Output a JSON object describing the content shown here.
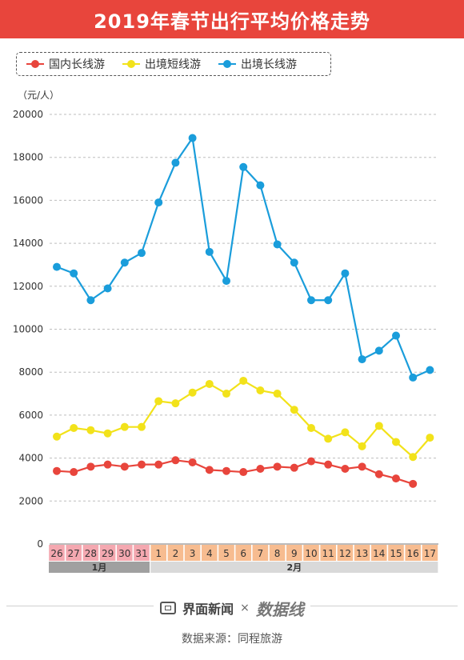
{
  "title": "2019年春节出行平均价格走势",
  "unit": "（元/人）",
  "footer": {
    "brand": "界面新闻",
    "times": "×",
    "logo": "数据线",
    "source": "数据来源：同程旅游"
  },
  "colors": {
    "title_bg": "#e8453c",
    "domestic": "#e8453c",
    "short": "#f2e21a",
    "long": "#1a9ddb"
  },
  "chart_data": {
    "type": "line",
    "title": "2019年春节出行平均价格走势",
    "ylabel": "（元/人）",
    "ylim": [
      0,
      20000
    ],
    "yticks": [
      0,
      2000,
      4000,
      6000,
      8000,
      10000,
      12000,
      14000,
      16000,
      18000,
      20000
    ],
    "grid": true,
    "legend_position": "top-left",
    "x": [
      "26",
      "27",
      "28",
      "29",
      "30",
      "31",
      "1",
      "2",
      "3",
      "4",
      "5",
      "6",
      "7",
      "8",
      "9",
      "10",
      "11",
      "12",
      "13",
      "14",
      "15",
      "16",
      "17"
    ],
    "months": [
      {
        "label": "1月",
        "days": [
          "26",
          "27",
          "28",
          "29",
          "30",
          "31"
        ]
      },
      {
        "label": "2月",
        "days": [
          "1",
          "2",
          "3",
          "4",
          "5",
          "6",
          "7",
          "8",
          "9",
          "10",
          "11",
          "12",
          "13",
          "14",
          "15",
          "16",
          "17"
        ]
      }
    ],
    "series": [
      {
        "name": "国内长线游",
        "color": "#e8453c",
        "values": [
          3400,
          3350,
          3600,
          3700,
          3600,
          3700,
          3700,
          3900,
          3800,
          3450,
          3400,
          3350,
          3500,
          3600,
          3550,
          3850,
          3700,
          3500,
          3600,
          3250,
          3050,
          2800,
          null
        ]
      },
      {
        "name": "出境短线游",
        "color": "#f2e21a",
        "values": [
          5000,
          5400,
          5300,
          5150,
          5450,
          5450,
          6650,
          6550,
          7050,
          7450,
          7000,
          7600,
          7150,
          7000,
          6250,
          5400,
          4900,
          5200,
          4550,
          5500,
          4750,
          4050,
          4950
        ]
      },
      {
        "name": "出境长线游",
        "color": "#1a9ddb",
        "values": [
          12900,
          12600,
          11350,
          11900,
          13100,
          13550,
          15900,
          17750,
          18900,
          13600,
          12250,
          17550,
          16700,
          13950,
          13100,
          11350,
          11350,
          12600,
          8600,
          9000,
          9700,
          7750,
          8100
        ]
      }
    ]
  }
}
